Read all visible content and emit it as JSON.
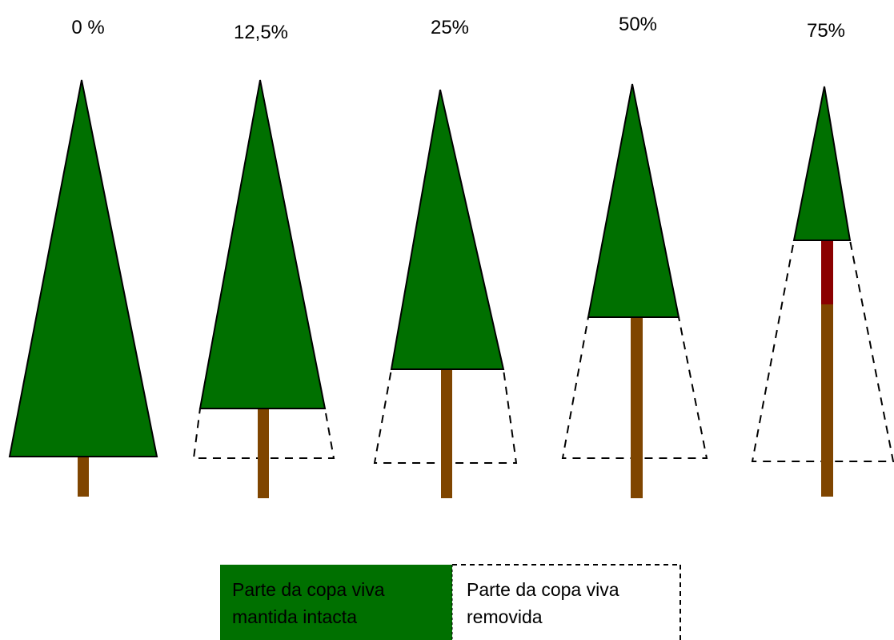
{
  "labels": [
    "0 %",
    "12,5%",
    "25%",
    "50%",
    "75%"
  ],
  "legend": {
    "kept": [
      "Parte da copa viva",
      "mantida intacta"
    ],
    "removed": [
      "Parte da copa viva",
      "removida"
    ]
  }
}
